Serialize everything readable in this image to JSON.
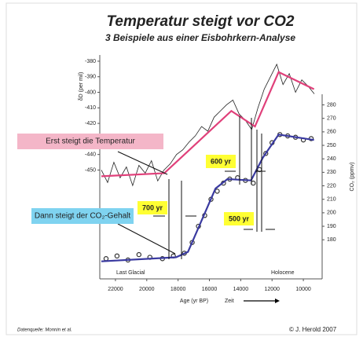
{
  "chart_data": {
    "type": "line",
    "title": "Temperatur steigt vor CO2",
    "subtitle": "3 Beispiele aus einer Eisbohrkern-Analyse",
    "xlabel": "Age (yr BP)",
    "ylabel": "δD (per mil)",
    "y2label": "CO₂ (ppmv)",
    "xlim": [
      23000,
      8800
    ],
    "xticks": [
      22000,
      20000,
      18000,
      16000,
      14000,
      12000,
      10000
    ],
    "ylim": [
      -520,
      -376
    ],
    "yticks": [
      -380,
      -390,
      -400,
      -410,
      -420,
      -430,
      -440,
      -450
    ],
    "y2lim": [
      151,
      317
    ],
    "y2ticks": [
      280,
      270,
      260,
      250,
      240,
      230,
      220,
      210,
      200,
      190,
      180
    ],
    "series": [
      {
        "type": "line",
        "color": "#222222",
        "axis": "y",
        "x": [
          22900,
          22500,
          22100,
          21700,
          21300,
          20900,
          20500,
          20100,
          19700,
          19300,
          18900,
          18500,
          18100,
          17700,
          17300,
          16900,
          16500,
          16100,
          15700,
          15300,
          14900,
          14500,
          14100,
          13700,
          13300,
          12900,
          12500,
          12100,
          11700,
          11300,
          10900,
          10500,
          10100,
          9700,
          9300
        ],
        "values": [
          -450,
          -458,
          -445,
          -455,
          -448,
          -460,
          -447,
          -452,
          -444,
          -457,
          -450,
          -446,
          -440,
          -437,
          -432,
          -428,
          -422,
          -425,
          -416,
          -412,
          -408,
          -405,
          -414,
          -418,
          -424,
          -410,
          -398,
          -390,
          -382,
          -395,
          -388,
          -400,
          -392,
          -396,
          -401
        ]
      },
      {
        "type": "line",
        "color": "#e0407a",
        "axis": "y",
        "x": [
          22900,
          18880,
          14600,
          13090,
          11580,
          9320
        ],
        "values": [
          -454,
          -452,
          -412,
          -422,
          -387,
          -398
        ]
      },
      {
        "type": "scatter",
        "color": "#333333",
        "axis": "y2",
        "x": [
          22600,
          21900,
          21200,
          20500,
          19800,
          19000,
          18300,
          17600,
          17100,
          16700,
          16300,
          15900,
          15500,
          15100,
          14700,
          14200,
          13700,
          13200,
          12800,
          12400,
          12000,
          11500,
          11000,
          10500,
          10000,
          9500
        ],
        "values": [
          166,
          168,
          165,
          169,
          167,
          166,
          168,
          170,
          178,
          190,
          198,
          210,
          216,
          222,
          225,
          226,
          224,
          222,
          232,
          244,
          252,
          258,
          257,
          256,
          254,
          255
        ]
      },
      {
        "type": "line",
        "color": "#3a3aa0",
        "axis": "y2",
        "x": [
          22900,
          18130,
          17370,
          15610,
          14850,
          13340,
          12580,
          11580,
          9320
        ],
        "values": [
          164,
          167,
          171,
          218,
          225,
          224,
          241,
          258,
          254
        ]
      }
    ],
    "annotations": [
      "Erst steigt die Temperatur",
      "Dann steigt der CO₂-Gehalt",
      "600 yr",
      "700 yr",
      "500 yr",
      "Last Glacial",
      "Holocene",
      "Zeit",
      "Datenquelle: Monnin et al.",
      "© J. Herold 2007"
    ]
  }
}
